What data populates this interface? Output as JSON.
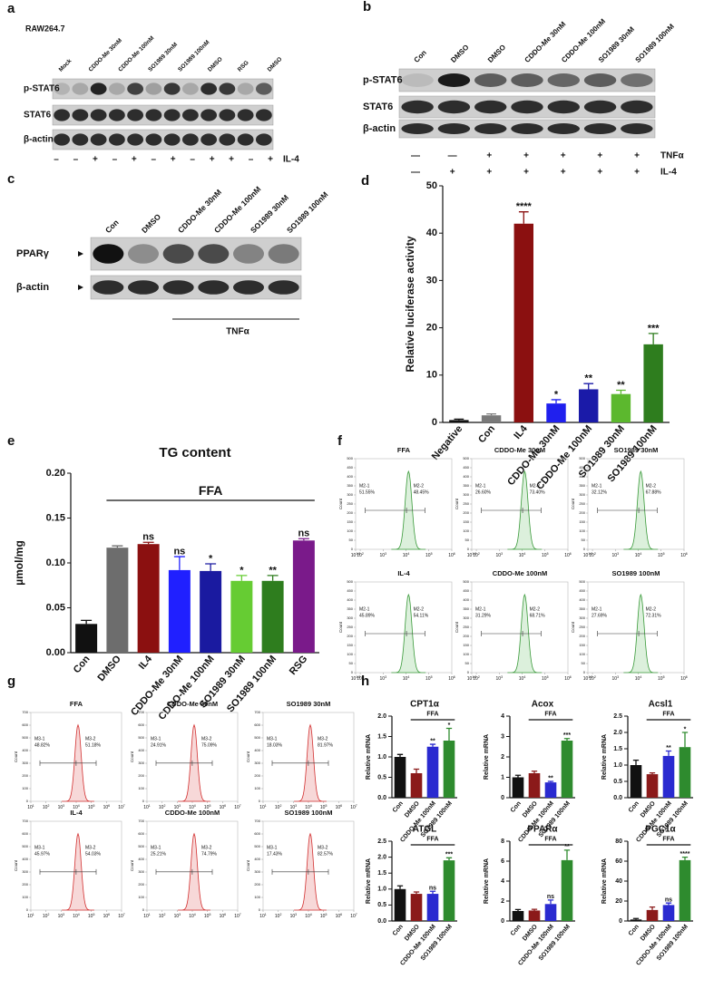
{
  "blots": [
    {
      "letter": "a",
      "cell_line": "RAW264.7",
      "lanes": [
        "Mock",
        "CDDO-Me 30nM",
        "CDDO-Me 100nM",
        "SO1989 30nM",
        "SO1989 100nM",
        "DMSO",
        "RSG",
        "DMSO"
      ],
      "rows": [
        "p-STAT6",
        "STAT6",
        "β-actin"
      ],
      "treatments": [
        {
          "name": "IL-4",
          "signs": [
            "–",
            "–",
            "+",
            "–",
            "+",
            "–",
            "+",
            "–",
            "+",
            "+",
            "–",
            "+"
          ]
        }
      ]
    },
    {
      "letter": "b",
      "lanes": [
        "Con",
        "DMSO",
        "DMSO",
        "CDDO-Me 30nM",
        "CDDO-Me 100nM",
        "SO1989 30nM",
        "SO1989 100nM"
      ],
      "rows": [
        "p-STAT6",
        "STAT6",
        "β-actin"
      ],
      "treatments": [
        {
          "name": "TNFα",
          "signs": [
            "—",
            "—",
            "+",
            "+",
            "+",
            "+",
            "+"
          ]
        },
        {
          "name": "IL-4",
          "signs": [
            "—",
            "+",
            "+",
            "+",
            "+",
            "+",
            "+"
          ]
        }
      ]
    },
    {
      "letter": "c",
      "lanes": [
        "Con",
        "DMSO",
        "CDDO-Me 30nM",
        "CDDO-Me 100nM",
        "SO1989 30nM",
        "SO1989 100nM"
      ],
      "rows": [
        "PPARγ",
        "β-actin"
      ],
      "treatment_label": "TNFα"
    }
  ],
  "chart_data": [
    {
      "type": "bar",
      "letter": "d",
      "y_label": "Relative luciferase activity",
      "categories": [
        "Negative",
        "Con",
        "IL4",
        "CDDO-Me 30nM",
        "CDDO-Me 100nM",
        "SO1989 30nM",
        "SO1989 100nM"
      ],
      "values": [
        0.5,
        1.5,
        42,
        4,
        7,
        6,
        16.5
      ],
      "errors": [
        0.2,
        0.3,
        2.5,
        0.8,
        1.2,
        0.8,
        2.3
      ],
      "colors": [
        "#111111",
        "#7a7a7a",
        "#8b1010",
        "#2020ee",
        "#1a1aa8",
        "#5cb82e",
        "#2e7d1e"
      ],
      "significance": [
        null,
        null,
        "****",
        "*",
        "**",
        "**",
        "***"
      ],
      "ylim": [
        0,
        50
      ],
      "yticks": [
        0,
        10,
        20,
        30,
        40,
        50
      ]
    },
    {
      "type": "bar",
      "letter": "e",
      "title": "TG content",
      "y_label": "µmol/mg",
      "bracket_label": "FFA",
      "categories": [
        "Con",
        "DMSO",
        "IL4",
        "CDDO-Me 30nM",
        "CDDO-Me 100nM",
        "SO1989 30nM",
        "SO1989 100nM",
        "RSG"
      ],
      "values": [
        0.032,
        0.117,
        0.121,
        0.092,
        0.091,
        0.08,
        0.08,
        0.125
      ],
      "errors": [
        0.004,
        0.002,
        0.002,
        0.015,
        0.008,
        0.006,
        0.006,
        0.002
      ],
      "colors": [
        "#111111",
        "#6d6d6d",
        "#8b1010",
        "#2020ff",
        "#1a1aa0",
        "#66cc33",
        "#2e7d1e",
        "#7a1a8a"
      ],
      "significance": [
        null,
        null,
        "ns",
        "ns",
        "*",
        "*",
        "**",
        "ns"
      ],
      "ylim": [
        0,
        0.2
      ],
      "yticks": [
        {
          "value": 0,
          "label": "0.00"
        },
        {
          "value": 0.05,
          "label": "0.05"
        },
        {
          "value": 0.1,
          "label": "0.10"
        },
        {
          "value": 0.15,
          "label": "0.15"
        },
        {
          "value": 0.2,
          "label": "0.20"
        }
      ]
    },
    {
      "type": "bar",
      "letter": "h",
      "title": "CPT1α",
      "y_label": "Relative mRNA",
      "bracket_label": "FFA",
      "categories": [
        "Con",
        "DMSO",
        "CDDO-Me 100nM",
        "SO1989 100nM"
      ],
      "values": [
        1.0,
        0.6,
        1.25,
        1.4
      ],
      "errors": [
        0.06,
        0.1,
        0.06,
        0.3
      ],
      "colors": [
        "#111111",
        "#8b1a1a",
        "#2a2ad0",
        "#2e8b2e"
      ],
      "significance": [
        null,
        null,
        "**",
        "*"
      ],
      "ylim": [
        0,
        2
      ],
      "yticks": [
        {
          "value": 0,
          "label": "0.0"
        },
        {
          "value": 0.5,
          "label": "0.5"
        },
        {
          "value": 1,
          "label": "1.0"
        },
        {
          "value": 1.5,
          "label": "1.5"
        },
        {
          "value": 2,
          "label": "2.0"
        }
      ]
    },
    {
      "type": "bar",
      "title": "Acox",
      "y_label": "Relative mRNA",
      "bracket_label": "FFA",
      "categories": [
        "Con",
        "DMSO",
        "CDDO-Me 100nM",
        "SO1989 100nM"
      ],
      "values": [
        1.0,
        1.2,
        0.75,
        2.8
      ],
      "errors": [
        0.1,
        0.1,
        0.05,
        0.1
      ],
      "colors": [
        "#111111",
        "#8b1a1a",
        "#2a2ad0",
        "#2e8b2e"
      ],
      "significance": [
        null,
        null,
        "**",
        "***"
      ],
      "ylim": [
        0,
        4
      ],
      "yticks": [
        0,
        1,
        2,
        3,
        4
      ]
    },
    {
      "type": "bar",
      "title": "Acsl1",
      "y_label": "Relative mRNA",
      "bracket_label": "FFA",
      "categories": [
        "Con",
        "DMSO",
        "CDDO-Me 100nM",
        "SO1989 100nM"
      ],
      "values": [
        1.0,
        0.72,
        1.28,
        1.55
      ],
      "errors": [
        0.15,
        0.04,
        0.15,
        0.45
      ],
      "colors": [
        "#111111",
        "#8b1a1a",
        "#2a2ad0",
        "#2e8b2e"
      ],
      "significance": [
        null,
        null,
        "**",
        "*"
      ],
      "ylim": [
        0,
        2.5
      ],
      "yticks": [
        {
          "value": 0,
          "label": "0.0"
        },
        {
          "value": 0.5,
          "label": "0.5"
        },
        {
          "value": 1,
          "label": "1.0"
        },
        {
          "value": 1.5,
          "label": "1.5"
        },
        {
          "value": 2,
          "label": "2.0"
        },
        {
          "value": 2.5,
          "label": "2.5"
        }
      ]
    },
    {
      "type": "bar",
      "title": "ATGL",
      "y_label": "Relative mRNA",
      "bracket_label": "FFA",
      "categories": [
        "Con",
        "DMSO",
        "CDDO-Me 100nM",
        "SO1989 100nM"
      ],
      "values": [
        1.0,
        0.85,
        0.85,
        1.9
      ],
      "errors": [
        0.1,
        0.06,
        0.08,
        0.08
      ],
      "colors": [
        "#111111",
        "#8b1a1a",
        "#2a2ad0",
        "#2e8b2e"
      ],
      "significance": [
        null,
        null,
        "ns",
        "***"
      ],
      "ylim": [
        0,
        2.5
      ],
      "yticks": [
        {
          "value": 0,
          "label": "0.0"
        },
        {
          "value": 0.5,
          "label": "0.5"
        },
        {
          "value": 1,
          "label": "1.0"
        },
        {
          "value": 1.5,
          "label": "1.5"
        },
        {
          "value": 2,
          "label": "2.0"
        },
        {
          "value": 2.5,
          "label": "2.5"
        }
      ]
    },
    {
      "type": "bar",
      "title": "PPARα",
      "y_label": "Relative mRNA",
      "bracket_label": "FFA",
      "categories": [
        "Con",
        "DMSO",
        "CDDO-Me 100nM",
        "SO1989 100nM"
      ],
      "values": [
        1.0,
        1.05,
        1.7,
        6.1
      ],
      "errors": [
        0.15,
        0.12,
        0.4,
        1.0
      ],
      "colors": [
        "#111111",
        "#8b1a1a",
        "#2a2ad0",
        "#2e8b2e"
      ],
      "significance": [
        null,
        null,
        "ns",
        "**"
      ],
      "ylim": [
        0,
        8
      ],
      "yticks": [
        0,
        2,
        4,
        6,
        8
      ]
    },
    {
      "type": "bar",
      "title": "PGC1α",
      "y_label": "Relative mRNA",
      "bracket_label": "FFA",
      "categories": [
        "Con",
        "DMSO",
        "CDDO-Me 100nM",
        "SO1989 100nM"
      ],
      "values": [
        1.5,
        11,
        16,
        61
      ],
      "errors": [
        1,
        3,
        2,
        3
      ],
      "colors": [
        "#111111",
        "#8b1a1a",
        "#2a2ad0",
        "#2e8b2e"
      ],
      "significance": [
        null,
        null,
        "ns",
        "****"
      ],
      "ylim": [
        0,
        80
      ],
      "yticks": [
        0,
        20,
        40,
        60,
        80
      ]
    }
  ],
  "flow": [
    {
      "letter": "f",
      "y_label": "Count",
      "color": "#3a9a3a",
      "x_ticks": [
        {
          "base": "10",
          "exponent": 1.8
        },
        {
          "base": "10",
          "exponent": 2
        },
        {
          "base": "10",
          "exponent": 3
        },
        {
          "base": "10",
          "exponent": 4
        },
        {
          "base": "10",
          "exponent": 5
        },
        {
          "base": "10",
          "exponent": 6
        }
      ],
      "y_ticks": [
        0,
        50,
        100,
        150,
        200,
        250,
        300,
        350,
        400,
        450,
        500
      ],
      "samples": [
        {
          "title": "FFA",
          "gates": [
            {
              "name": "M2-1",
              "percent": "51.55%"
            },
            {
              "name": "M2-2",
              "percent": "48.45%"
            }
          ]
        },
        {
          "title": "CDDO-Me 30nM",
          "gates": [
            {
              "name": "M2-1",
              "percent": "26.60%"
            },
            {
              "name": "M2-2",
              "percent": "73.40%"
            }
          ]
        },
        {
          "title": "SO1989 30nM",
          "gates": [
            {
              "name": "M2-1",
              "percent": "32.12%"
            },
            {
              "name": "M2-2",
              "percent": "67.88%"
            }
          ]
        },
        {
          "title": "IL-4",
          "gates": [
            {
              "name": "M2-1",
              "percent": "45.89%"
            },
            {
              "name": "M2-2",
              "percent": "54.11%"
            }
          ]
        },
        {
          "title": "CDDO-Me 100nM",
          "gates": [
            {
              "name": "M2-1",
              "percent": "31.29%"
            },
            {
              "name": "M2-2",
              "percent": "68.71%"
            }
          ]
        },
        {
          "title": "SO1989 100nM",
          "gates": [
            {
              "name": "M2-1",
              "percent": "27.69%"
            },
            {
              "name": "M2-2",
              "percent": "72.31%"
            }
          ]
        }
      ]
    },
    {
      "letter": "g",
      "y_label": "Count",
      "color": "#d23030",
      "x_ticks": [
        {
          "base": "10",
          "exponent": 1
        },
        {
          "base": "10",
          "exponent": 2
        },
        {
          "base": "10",
          "exponent": 3
        },
        {
          "base": "10",
          "exponent": 4
        },
        {
          "base": "10",
          "exponent": 5
        },
        {
          "base": "10",
          "exponent": 6
        },
        {
          "base": "10",
          "exponent": 7
        }
      ],
      "y_ticks": [
        0,
        100,
        200,
        300,
        400,
        500,
        600,
        700
      ],
      "samples": [
        {
          "title": "FFA",
          "gates": [
            {
              "name": "M3-1",
              "percent": "48.82%"
            },
            {
              "name": "M3-2",
              "percent": "51.18%"
            }
          ]
        },
        {
          "title": "CDDO-Me 30nM",
          "gates": [
            {
              "name": "M3-1",
              "percent": "24.91%"
            },
            {
              "name": "M3-2",
              "percent": "75.09%"
            }
          ]
        },
        {
          "title": "SO1989 30nM",
          "gates": [
            {
              "name": "M3-1",
              "percent": "18.03%"
            },
            {
              "name": "M3-2",
              "percent": "81.97%"
            }
          ]
        },
        {
          "title": "IL-4",
          "gates": [
            {
              "name": "M3-1",
              "percent": "45.97%"
            },
            {
              "name": "M3-2",
              "percent": "54.03%"
            }
          ]
        },
        {
          "title": "CDDO-Me 100nM",
          "gates": [
            {
              "name": "M3-1",
              "percent": "25.21%"
            },
            {
              "name": "M3-2",
              "percent": "74.79%"
            }
          ]
        },
        {
          "title": "SO1989 100nM",
          "gates": [
            {
              "name": "M3-1",
              "percent": "17.43%"
            },
            {
              "name": "M3-2",
              "percent": "82.57%"
            }
          ]
        }
      ]
    }
  ]
}
